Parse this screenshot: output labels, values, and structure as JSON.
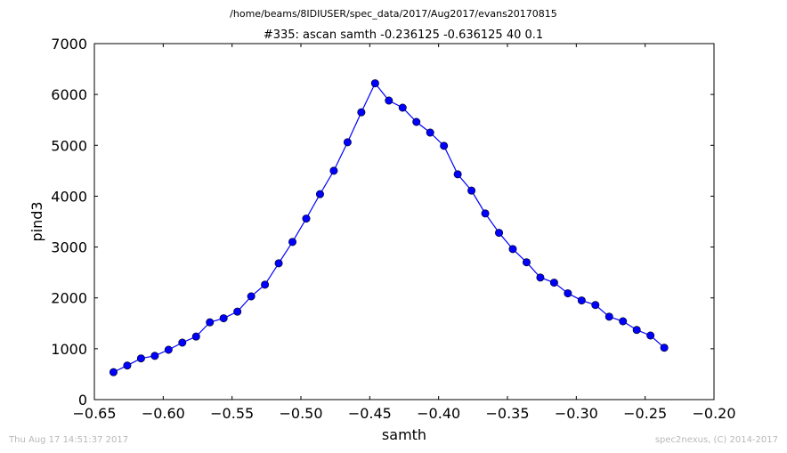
{
  "footer": {
    "timestamp": "Thu Aug 17 14:51:37 2017",
    "credit": "spec2nexus, (C) 2014-2017"
  },
  "chart_data": {
    "type": "line",
    "suptitle": "/home/beams/8IDIUSER/spec_data/2017/Aug2017/evans20170815",
    "title": "#335: ascan  samth -0.236125 -0.636125  40 0.1",
    "xlabel": "samth",
    "ylabel": "pind3",
    "xlim": [
      -0.65,
      -0.2
    ],
    "ylim": [
      0,
      7000
    ],
    "xticks": [
      -0.65,
      -0.6,
      -0.55,
      -0.5,
      -0.45,
      -0.4,
      -0.35,
      -0.3,
      -0.25,
      -0.2
    ],
    "xtick_labels": [
      "−0.65",
      "−0.60",
      "−0.55",
      "−0.50",
      "−0.45",
      "−0.40",
      "−0.35",
      "−0.30",
      "−0.25",
      "−0.20"
    ],
    "yticks": [
      0,
      1000,
      2000,
      3000,
      4000,
      5000,
      6000,
      7000
    ],
    "ytick_labels": [
      "0",
      "1000",
      "2000",
      "3000",
      "4000",
      "5000",
      "6000",
      "7000"
    ],
    "grid": false,
    "line_color": "#0000ff",
    "marker_color": "#0000ff",
    "series": [
      {
        "x": [
          -0.636125,
          -0.626125,
          -0.616125,
          -0.606125,
          -0.596125,
          -0.586125,
          -0.576125,
          -0.566125,
          -0.556125,
          -0.546125,
          -0.536125,
          -0.526125,
          -0.516125,
          -0.506125,
          -0.496125,
          -0.486125,
          -0.476125,
          -0.466125,
          -0.456125,
          -0.446125,
          -0.436125,
          -0.426125,
          -0.416125,
          -0.406125,
          -0.396125,
          -0.386125,
          -0.376125,
          -0.366125,
          -0.356125,
          -0.346125,
          -0.336125,
          -0.326125,
          -0.316125,
          -0.306125,
          -0.296125,
          -0.286125,
          -0.276125,
          -0.266125,
          -0.256125,
          -0.246125,
          -0.236125
        ],
        "y": [
          540,
          670,
          810,
          860,
          980,
          1120,
          1240,
          1520,
          1600,
          1730,
          2030,
          2260,
          2680,
          3100,
          3560,
          4040,
          4500,
          5060,
          5650,
          6220,
          5880,
          5740,
          5460,
          5250,
          4990,
          4430,
          4110,
          3660,
          3280,
          2960,
          2700,
          2400,
          2300,
          2090,
          1950,
          1860,
          1630,
          1540,
          1370,
          1260,
          1020
        ]
      }
    ]
  }
}
